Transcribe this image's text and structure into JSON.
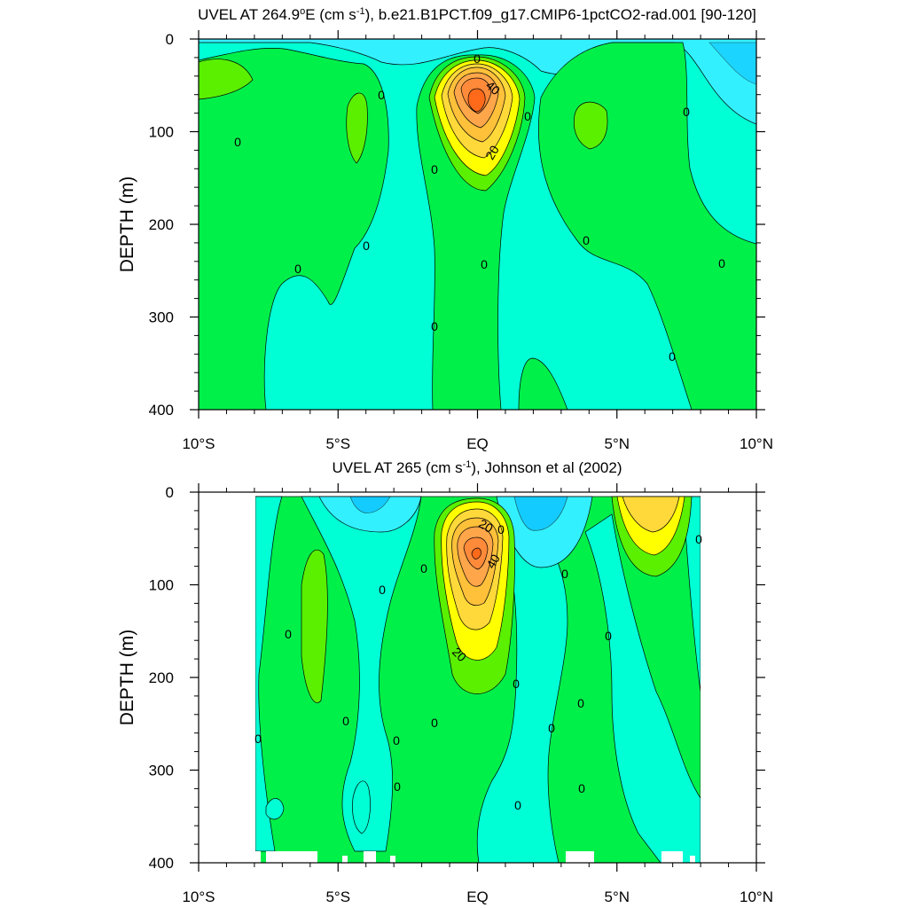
{
  "colors": {
    "c_lt_m5": "#00b4ff",
    "c_m5_0": "#33f0ff",
    "c_0_5": "#00ffd5",
    "c_5_10": "#00f04a",
    "c_10_15": "#5af000",
    "c_15_20": "#ffff00",
    "c_20_25": "#ffd93a",
    "c_25_30": "#ffc03a",
    "c_30_35": "#ffa64a",
    "c_35_40": "#ff8a3a",
    "c_40_45": "#ff6a1a"
  },
  "chart_data": [
    {
      "type": "contour",
      "title": "UVEL AT 264.9",
      "title_degree_suffix": "E (cm s",
      "title_superscript": "-1",
      "title_rest": "), b.e21.B1PCT.f09_g17.CMIP6-1pctCO2-rad.001 [90-120]",
      "ylabel": "DEPTH (m)",
      "xlim": [
        -10,
        10
      ],
      "ylim": [
        400,
        0
      ],
      "xticks": [
        -10,
        -5,
        0,
        5,
        10
      ],
      "xtick_labels": [
        "10°S",
        "5°S",
        "EQ",
        "5°N",
        "10°N"
      ],
      "yticks": [
        0,
        100,
        200,
        300,
        400
      ],
      "ytick_labels": [
        "0",
        "100",
        "200",
        "300",
        "400"
      ],
      "contour_interval": 5,
      "contour_labels": [
        "0",
        "0",
        "0",
        "0",
        "0",
        "0",
        "0",
        "0",
        "0",
        "0",
        "0",
        "0",
        "0",
        "0",
        "20",
        "40"
      ],
      "core": {
        "lon": 0.0,
        "depth": 70,
        "max_approx": 45
      }
    },
    {
      "type": "contour",
      "title": "UVEL AT 265 (cm s",
      "title_superscript": "-1",
      "title_rest": "), Johnson et al (2002)",
      "ylabel": "DEPTH (m)",
      "xlim": [
        -10,
        10
      ],
      "ylim": [
        400,
        0
      ],
      "xticks": [
        -10,
        -5,
        0,
        5,
        10
      ],
      "xtick_labels": [
        "10°S",
        "5°S",
        "EQ",
        "5°N",
        "10°N"
      ],
      "yticks": [
        0,
        100,
        200,
        300,
        400
      ],
      "ytick_labels": [
        "0",
        "100",
        "200",
        "300",
        "400"
      ],
      "contour_interval": 5,
      "data_range_lon": [
        -8,
        8
      ],
      "contour_labels": [
        "0",
        "0",
        "0",
        "0",
        "0",
        "0",
        "0",
        "0",
        "0",
        "0",
        "0",
        "0",
        "0",
        "0",
        "0",
        "0",
        "0",
        "0",
        "20",
        "20",
        "40"
      ],
      "core": {
        "lon": 0.0,
        "depth": 65,
        "max_approx": 45
      }
    }
  ]
}
